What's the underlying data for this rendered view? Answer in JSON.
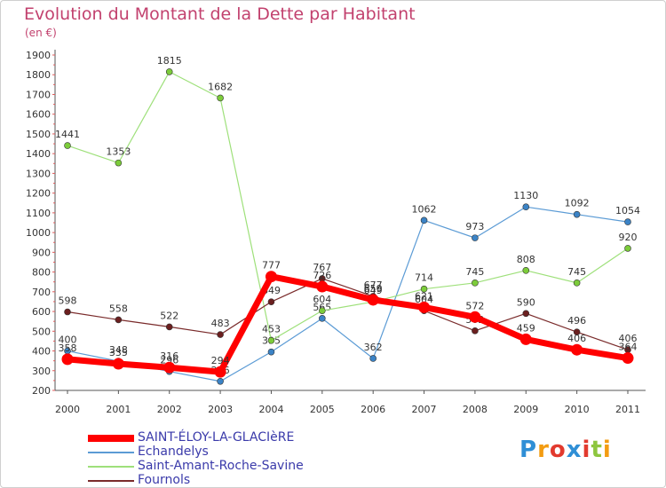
{
  "title": "Evolution du Montant de la Dette par Habitant",
  "subtitle": "(en €)",
  "logo": {
    "text": "Proxiti",
    "colors": [
      "#2f8fd6",
      "#f39c12",
      "#e23a2e",
      "#2f8fd6",
      "#e23a2e",
      "#8dc63f",
      "#f39c12"
    ]
  },
  "chart_data": {
    "type": "line",
    "x": [
      "2000",
      "2001",
      "2002",
      "2003",
      "2004",
      "2005",
      "2006",
      "2007",
      "2008",
      "2009",
      "2010",
      "2011"
    ],
    "ylim": [
      200,
      1900
    ],
    "yticks": [
      200,
      300,
      400,
      500,
      600,
      700,
      800,
      900,
      1000,
      1100,
      1200,
      1300,
      1400,
      1500,
      1600,
      1700,
      1800,
      1900
    ],
    "grid": false,
    "legend_position": "bottom-left",
    "series": [
      {
        "name": "Echandelys",
        "color": "#5b9bd5",
        "marker": "#3b83c6",
        "width": 1.2,
        "values": [
          400,
          348,
          296,
          246,
          395,
          565,
          362,
          1062,
          973,
          1130,
          1092,
          1054
        ]
      },
      {
        "name": "Saint-Amant-Roche-Savine",
        "color": "#9ee07a",
        "marker": "#7ccc3a",
        "width": 1.2,
        "values": [
          1441,
          1353,
          1815,
          1682,
          453,
          604,
          649,
          714,
          745,
          808,
          745,
          920
        ]
      },
      {
        "name": "Fournols",
        "color": "#7a2b2b",
        "marker": "#6b1f1f",
        "width": 1.2,
        "values": [
          598,
          558,
          522,
          483,
          649,
          767,
          677,
          604,
          502,
          590,
          496,
          406
        ]
      },
      {
        "name": "SAINT-ÉLOY-LA-GLACIèRE",
        "color": "#ff0000",
        "marker": "#ff0000",
        "width": 7,
        "values": [
          358,
          335,
          316,
          294,
          777,
          726,
          659,
          621,
          572,
          459,
          406,
          364
        ]
      }
    ],
    "legend_order": [
      "SAINT-ÉLOY-LA-GLACIèRE",
      "Echandelys",
      "Saint-Amant-Roche-Savine",
      "Fournols"
    ]
  }
}
